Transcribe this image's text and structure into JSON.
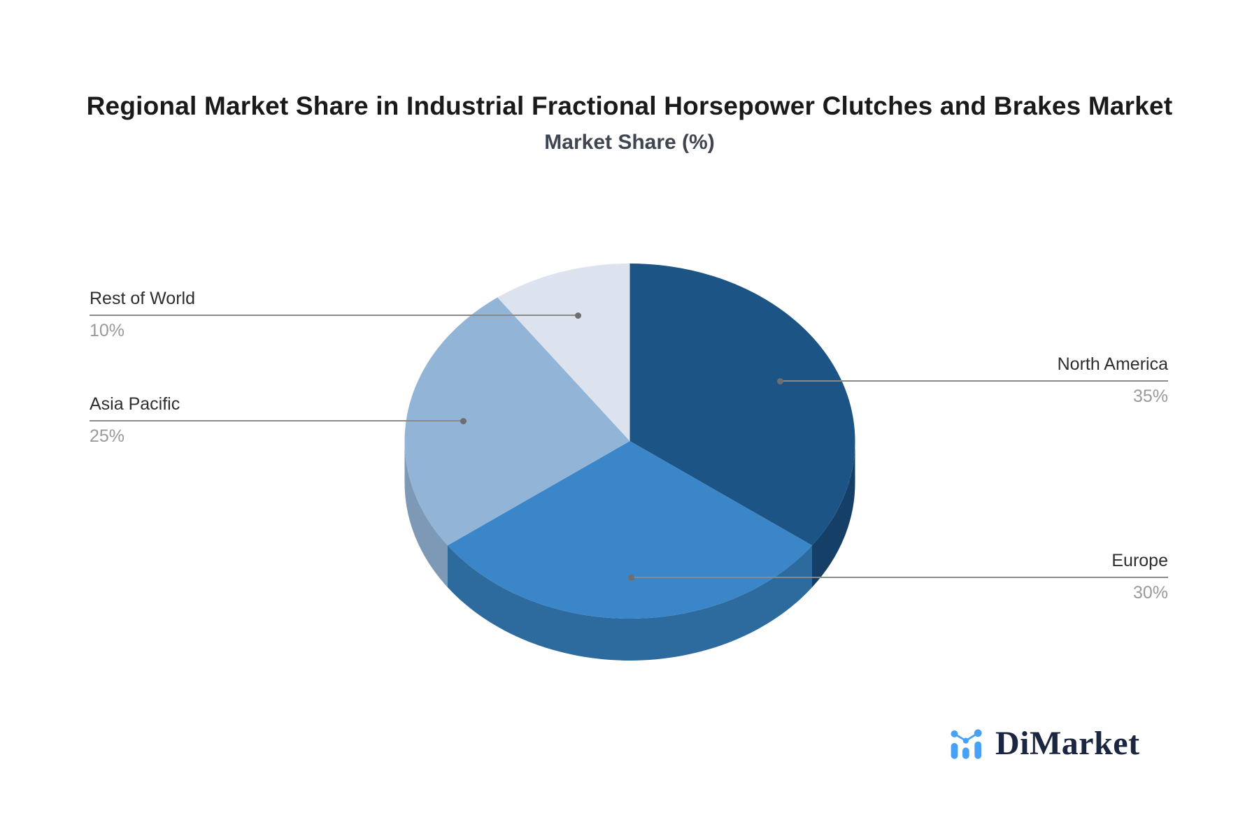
{
  "header": {
    "title": "Regional Market Share in Industrial Fractional Horsepower Clutches and Brakes Market",
    "subtitle": "Market Share (%)"
  },
  "chart_data": {
    "type": "pie",
    "effect": "3d",
    "title": "Regional Market Share in Industrial Fractional Horsepower Clutches and Brakes Market",
    "subtitle": "Market Share (%)",
    "unit": "%",
    "start_angle": "12-oclock",
    "direction": "clockwise",
    "legend": "none (leader-line callouts)",
    "labels": [
      "North America",
      "Europe",
      "Asia Pacific",
      "Rest of World"
    ],
    "values": [
      35,
      30,
      25,
      10
    ],
    "colors": [
      "#1C5585",
      "#3A86C8",
      "#92B4D7",
      "#DDE3EE"
    ],
    "side_colors": [
      "#153F66",
      "#2D6B9E",
      "#7E99B5",
      "#BCC8D9"
    ]
  },
  "annotations": {
    "north_america": {
      "label": "North America",
      "value": "35%"
    },
    "europe": {
      "label": "Europe",
      "value": "30%"
    },
    "asia_pacific": {
      "label": "Asia Pacific",
      "value": "25%"
    },
    "rest_of_world": {
      "label": "Rest of World",
      "value": "10%"
    }
  },
  "logo": {
    "text": "DiMarket",
    "icon": "bar-line-chart-icon",
    "icon_color": "#49A1F6",
    "text_color": "#1B2740"
  },
  "palette": {
    "background": "#ffffff",
    "leader_line": "#8a8a8a",
    "leader_dot": "#6e6e6e",
    "label_text": "#2e2e2e",
    "value_text": "#9a9a9a"
  }
}
